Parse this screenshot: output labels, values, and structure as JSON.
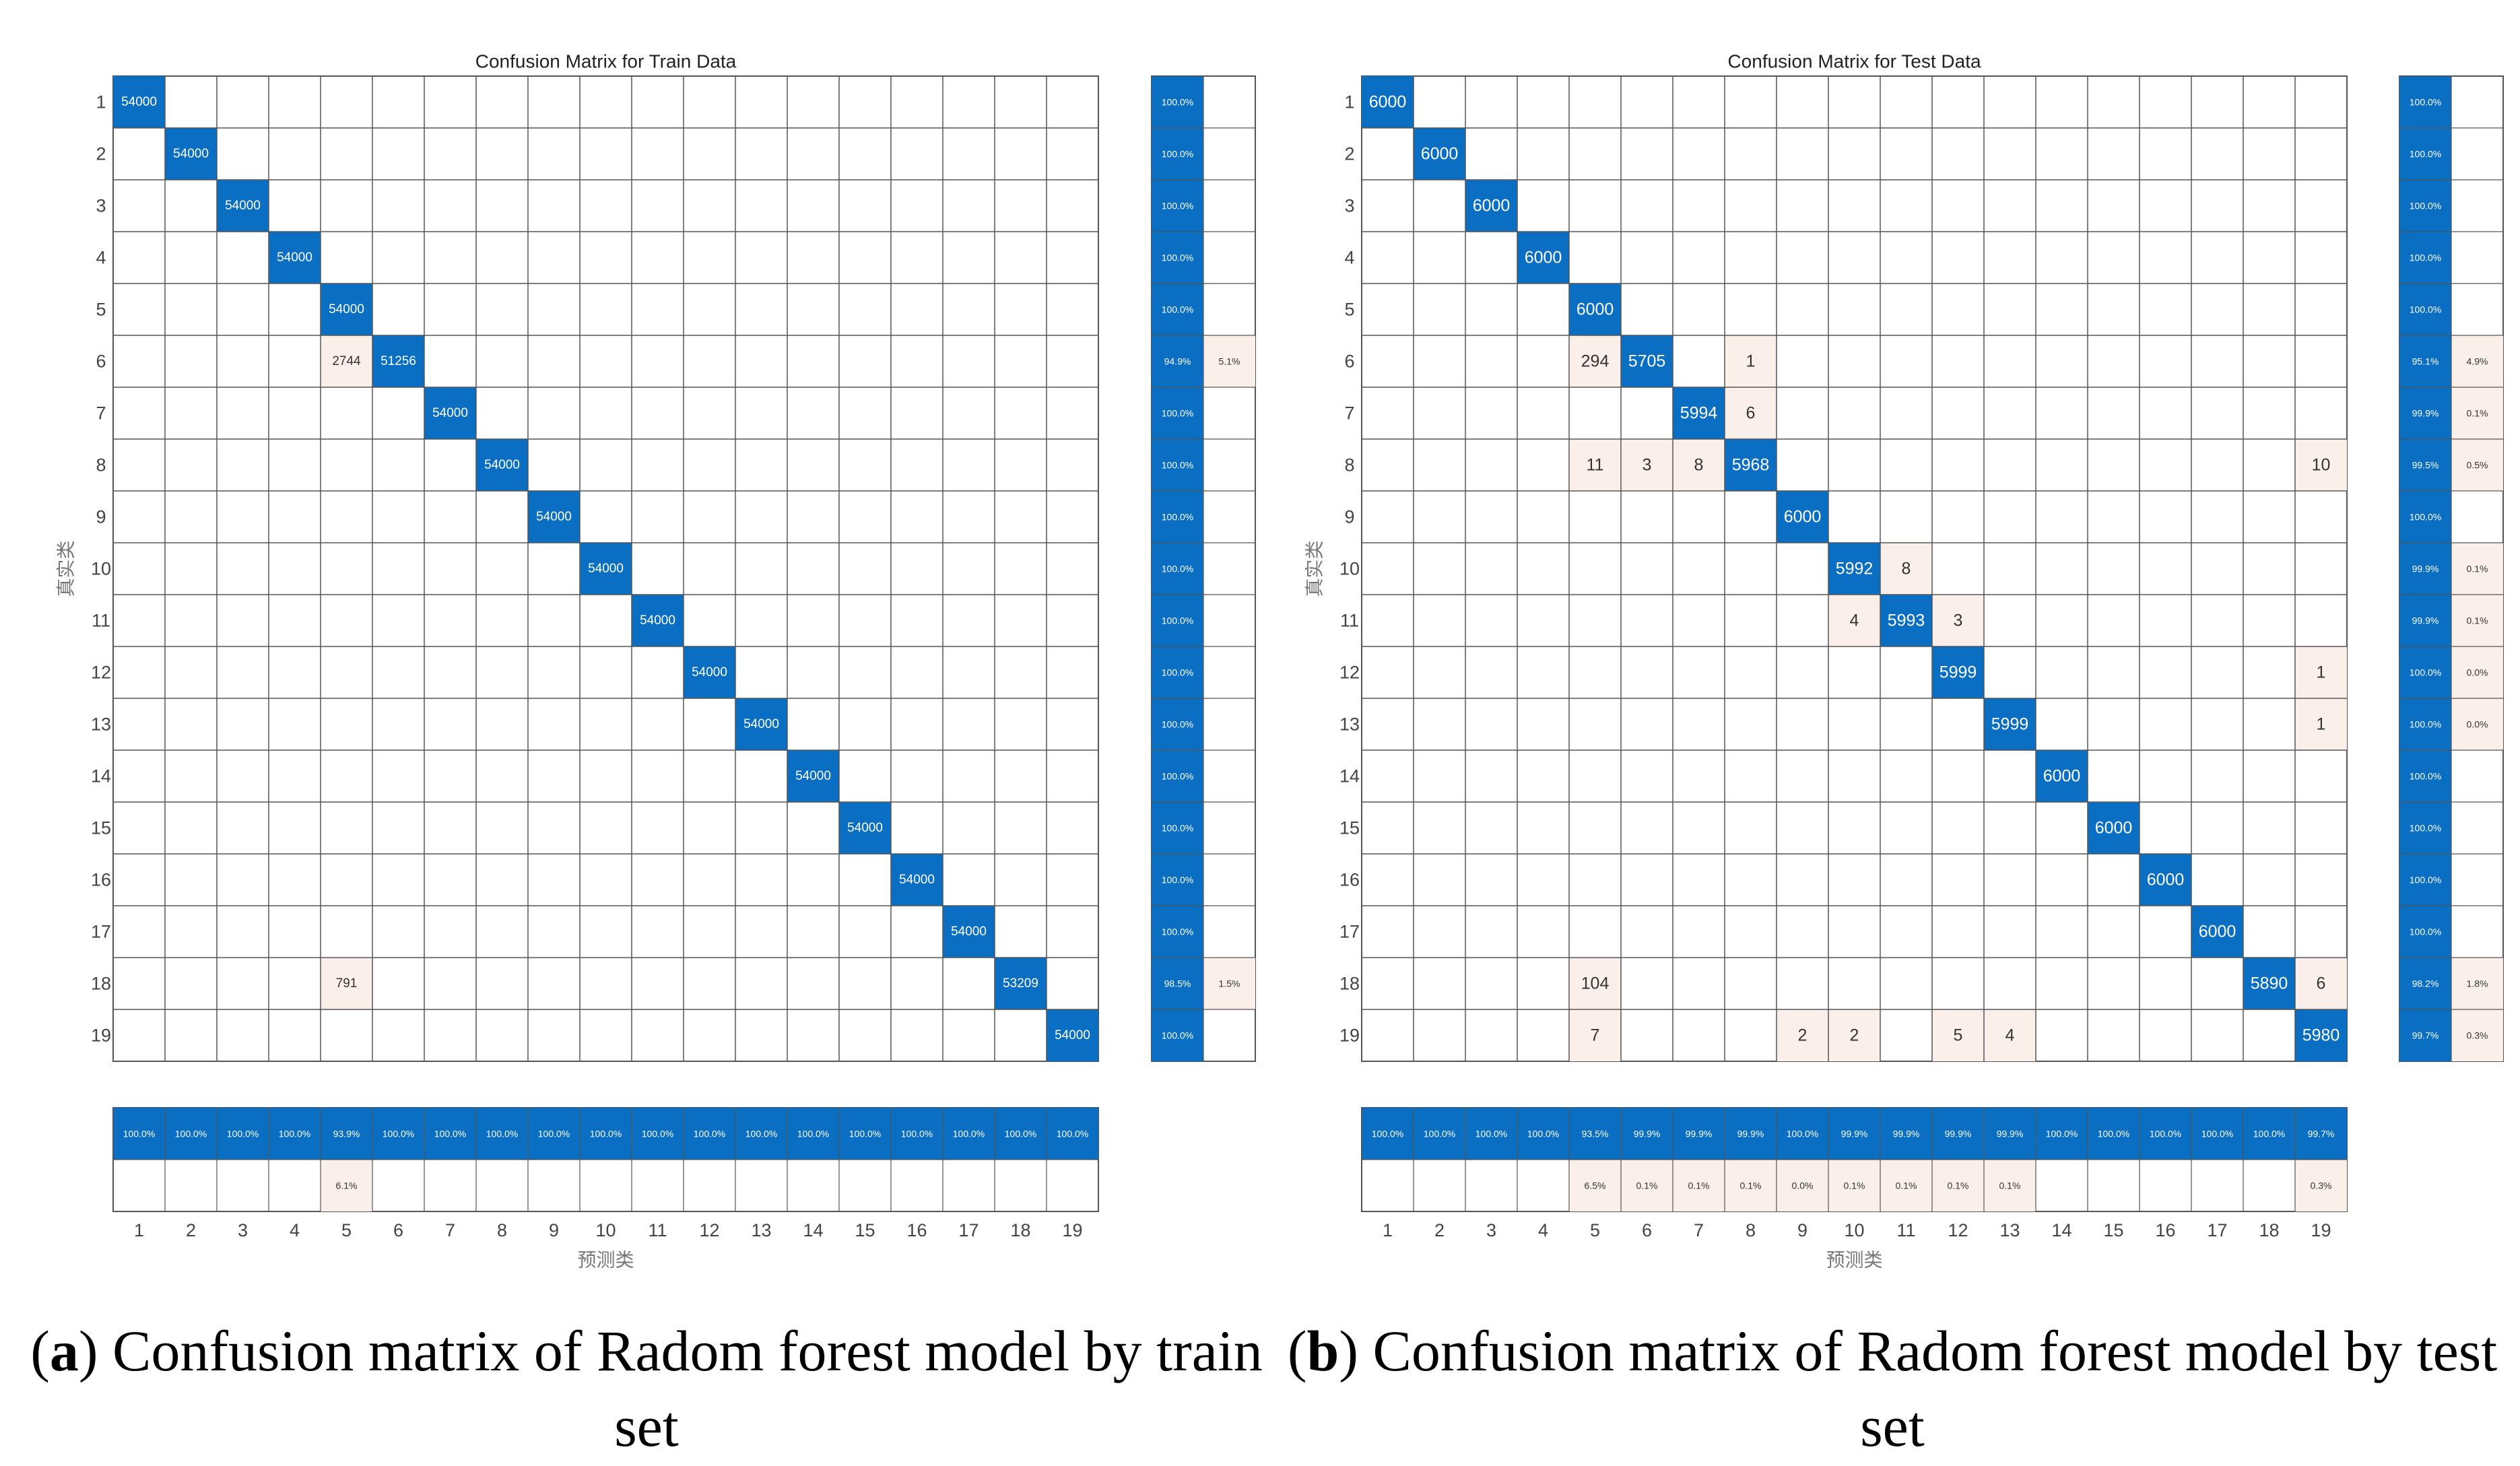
{
  "charts_meta": {
    "diag_color": "#0a6fc2",
    "off_color": "#fbefe9",
    "grid_color": "#555555",
    "axis_text_color": "#444444",
    "cell_text_on_blue": "#ffffff",
    "cell_text_on_light": "#333333"
  },
  "chart_data": [
    {
      "type": "heatmap",
      "title": "Confusion Matrix for Train Data",
      "xlabel": "预测类",
      "ylabel": "真实类",
      "classes": [
        "1",
        "2",
        "3",
        "4",
        "5",
        "6",
        "7",
        "8",
        "9",
        "10",
        "11",
        "12",
        "13",
        "14",
        "15",
        "16",
        "17",
        "18",
        "19"
      ],
      "cells": [
        {
          "row": 1,
          "col": 1,
          "value": "54000"
        },
        {
          "row": 2,
          "col": 2,
          "value": "54000"
        },
        {
          "row": 3,
          "col": 3,
          "value": "54000"
        },
        {
          "row": 4,
          "col": 4,
          "value": "54000"
        },
        {
          "row": 5,
          "col": 5,
          "value": "54000"
        },
        {
          "row": 6,
          "col": 5,
          "value": "2744"
        },
        {
          "row": 6,
          "col": 6,
          "value": "51256"
        },
        {
          "row": 7,
          "col": 7,
          "value": "54000"
        },
        {
          "row": 8,
          "col": 8,
          "value": "54000"
        },
        {
          "row": 9,
          "col": 9,
          "value": "54000"
        },
        {
          "row": 10,
          "col": 10,
          "value": "54000"
        },
        {
          "row": 11,
          "col": 11,
          "value": "54000"
        },
        {
          "row": 12,
          "col": 12,
          "value": "54000"
        },
        {
          "row": 13,
          "col": 13,
          "value": "54000"
        },
        {
          "row": 14,
          "col": 14,
          "value": "54000"
        },
        {
          "row": 15,
          "col": 15,
          "value": "54000"
        },
        {
          "row": 16,
          "col": 16,
          "value": "54000"
        },
        {
          "row": 17,
          "col": 17,
          "value": "54000"
        },
        {
          "row": 18,
          "col": 5,
          "value": "791"
        },
        {
          "row": 18,
          "col": 18,
          "value": "53209"
        },
        {
          "row": 19,
          "col": 19,
          "value": "54000"
        }
      ],
      "row_summary": {
        "correct": [
          "100.0%",
          "100.0%",
          "100.0%",
          "100.0%",
          "100.0%",
          "94.9%",
          "100.0%",
          "100.0%",
          "100.0%",
          "100.0%",
          "100.0%",
          "100.0%",
          "100.0%",
          "100.0%",
          "100.0%",
          "100.0%",
          "100.0%",
          "98.5%",
          "100.0%"
        ],
        "incorrect": [
          "",
          "",
          "",
          "",
          "",
          "5.1%",
          "",
          "",
          "",
          "",
          "",
          "",
          "",
          "",
          "",
          "",
          "",
          "1.5%",
          ""
        ]
      },
      "col_summary": {
        "correct": [
          "100.0%",
          "100.0%",
          "100.0%",
          "100.0%",
          "93.9%",
          "100.0%",
          "100.0%",
          "100.0%",
          "100.0%",
          "100.0%",
          "100.0%",
          "100.0%",
          "100.0%",
          "100.0%",
          "100.0%",
          "100.0%",
          "100.0%",
          "100.0%",
          "100.0%"
        ],
        "incorrect": [
          "",
          "",
          "",
          "",
          "6.1%",
          "",
          "",
          "",
          "",
          "",
          "",
          "",
          "",
          "",
          "",
          "",
          "",
          "",
          ""
        ]
      }
    },
    {
      "type": "heatmap",
      "title": "Confusion Matrix for Test Data",
      "xlabel": "预测类",
      "ylabel": "真实类",
      "classes": [
        "1",
        "2",
        "3",
        "4",
        "5",
        "6",
        "7",
        "8",
        "9",
        "10",
        "11",
        "12",
        "13",
        "14",
        "15",
        "16",
        "17",
        "18",
        "19"
      ],
      "cells": [
        {
          "row": 1,
          "col": 1,
          "value": "6000"
        },
        {
          "row": 2,
          "col": 2,
          "value": "6000"
        },
        {
          "row": 3,
          "col": 3,
          "value": "6000"
        },
        {
          "row": 4,
          "col": 4,
          "value": "6000"
        },
        {
          "row": 5,
          "col": 5,
          "value": "6000"
        },
        {
          "row": 6,
          "col": 5,
          "value": "294"
        },
        {
          "row": 6,
          "col": 6,
          "value": "5705"
        },
        {
          "row": 6,
          "col": 8,
          "value": "1"
        },
        {
          "row": 7,
          "col": 7,
          "value": "5994"
        },
        {
          "row": 7,
          "col": 8,
          "value": "6"
        },
        {
          "row": 8,
          "col": 5,
          "value": "11"
        },
        {
          "row": 8,
          "col": 6,
          "value": "3"
        },
        {
          "row": 8,
          "col": 7,
          "value": "8"
        },
        {
          "row": 8,
          "col": 8,
          "value": "5968"
        },
        {
          "row": 8,
          "col": 19,
          "value": "10"
        },
        {
          "row": 9,
          "col": 9,
          "value": "6000"
        },
        {
          "row": 10,
          "col": 10,
          "value": "5992"
        },
        {
          "row": 10,
          "col": 11,
          "value": "8"
        },
        {
          "row": 11,
          "col": 10,
          "value": "4"
        },
        {
          "row": 11,
          "col": 11,
          "value": "5993"
        },
        {
          "row": 11,
          "col": 12,
          "value": "3"
        },
        {
          "row": 12,
          "col": 12,
          "value": "5999"
        },
        {
          "row": 12,
          "col": 19,
          "value": "1"
        },
        {
          "row": 13,
          "col": 13,
          "value": "5999"
        },
        {
          "row": 13,
          "col": 19,
          "value": "1"
        },
        {
          "row": 14,
          "col": 14,
          "value": "6000"
        },
        {
          "row": 15,
          "col": 15,
          "value": "6000"
        },
        {
          "row": 16,
          "col": 16,
          "value": "6000"
        },
        {
          "row": 17,
          "col": 17,
          "value": "6000"
        },
        {
          "row": 18,
          "col": 5,
          "value": "104"
        },
        {
          "row": 18,
          "col": 18,
          "value": "5890"
        },
        {
          "row": 18,
          "col": 19,
          "value": "6"
        },
        {
          "row": 19,
          "col": 5,
          "value": "7"
        },
        {
          "row": 19,
          "col": 9,
          "value": "2"
        },
        {
          "row": 19,
          "col": 10,
          "value": "2"
        },
        {
          "row": 19,
          "col": 12,
          "value": "5"
        },
        {
          "row": 19,
          "col": 13,
          "value": "4"
        },
        {
          "row": 19,
          "col": 19,
          "value": "5980"
        }
      ],
      "row_summary": {
        "correct": [
          "100.0%",
          "100.0%",
          "100.0%",
          "100.0%",
          "100.0%",
          "95.1%",
          "99.9%",
          "99.5%",
          "100.0%",
          "99.9%",
          "99.9%",
          "100.0%",
          "100.0%",
          "100.0%",
          "100.0%",
          "100.0%",
          "100.0%",
          "98.2%",
          "99.7%"
        ],
        "incorrect": [
          "",
          "",
          "",
          "",
          "",
          "4.9%",
          "0.1%",
          "0.5%",
          "",
          "0.1%",
          "0.1%",
          "0.0%",
          "0.0%",
          "",
          "",
          "",
          "",
          "1.8%",
          "0.3%"
        ]
      },
      "col_summary": {
        "correct": [
          "100.0%",
          "100.0%",
          "100.0%",
          "100.0%",
          "93.5%",
          "99.9%",
          "99.9%",
          "99.9%",
          "100.0%",
          "99.9%",
          "99.9%",
          "99.9%",
          "99.9%",
          "100.0%",
          "100.0%",
          "100.0%",
          "100.0%",
          "100.0%",
          "99.7%"
        ],
        "incorrect": [
          "",
          "",
          "",
          "",
          "6.5%",
          "0.1%",
          "0.1%",
          "0.1%",
          "0.0%",
          "0.1%",
          "0.1%",
          "0.1%",
          "0.1%",
          "",
          "",
          "",
          "",
          "",
          "0.3%"
        ]
      }
    }
  ],
  "captions": {
    "a_letter": "a",
    "a_text": ") Confusion matrix of Radom forest model by train set",
    "b_letter": "b",
    "b_text": ") Confusion matrix of Radom forest model by test set"
  }
}
